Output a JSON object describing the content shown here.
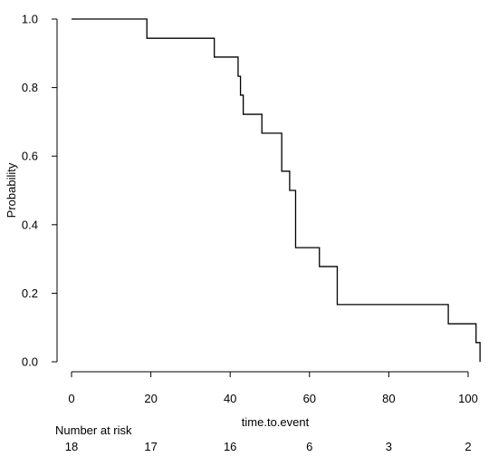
{
  "chart_data": {
    "type": "line",
    "step": true,
    "ylabel": "Probability",
    "xlabel": "time.to.event",
    "xlim": [
      0,
      104
    ],
    "ylim": [
      0,
      1.0
    ],
    "x_ticks": [
      0,
      20,
      40,
      60,
      80,
      100
    ],
    "y_ticks": [
      "0.0",
      "0.2",
      "0.4",
      "0.6",
      "0.8",
      "1.0"
    ],
    "series": [
      {
        "x": [
          0,
          19,
          36,
          42,
          42.6,
          43.3,
          44,
          48,
          53,
          55,
          56.5,
          57,
          62.5,
          67,
          95,
          102,
          103
        ],
        "y": [
          1.0,
          0.944,
          0.889,
          0.833,
          0.778,
          0.722,
          0.722,
          0.667,
          0.556,
          0.5,
          0.333,
          0.333,
          0.278,
          0.167,
          0.111,
          0.056,
          0.0
        ]
      }
    ],
    "risk_table": {
      "label": "Number at risk",
      "times": [
        0,
        20,
        40,
        60,
        80,
        100
      ],
      "counts": [
        "18",
        "17",
        "16",
        "6",
        "3",
        "2"
      ]
    }
  }
}
